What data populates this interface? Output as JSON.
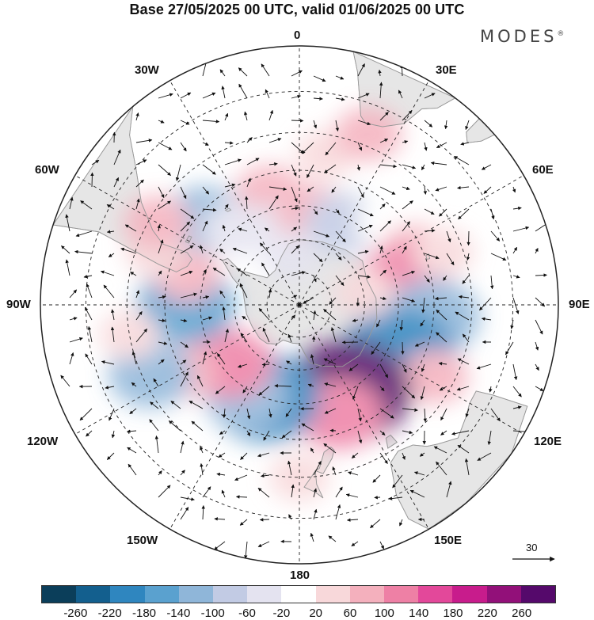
{
  "title": "Base 27/05/2025 00 UTC, valid 01/06/2025 00 UTC",
  "brand": "MODES",
  "brand_mark": "®",
  "longitude_labels": {
    "top": "0",
    "top_left": "30W",
    "top_right": "30E",
    "upper_left": "60W",
    "upper_right": "60E",
    "left": "90W",
    "right": "90E",
    "lower_left": "120W",
    "lower_right": "120E",
    "bottom_left": "150W",
    "bottom_right": "150E",
    "bottom": "180"
  },
  "reference_vector": {
    "value": "30"
  },
  "colorbar": {
    "colors": [
      "#0b3e5a",
      "#135f8e",
      "#2f86bf",
      "#5aa1cf",
      "#8fb6d9",
      "#c2cbe4",
      "#e4e3f0",
      "#ffffff",
      "#f8d8da",
      "#f4b0bd",
      "#ee80a5",
      "#e3489a",
      "#c81c8c",
      "#921079",
      "#55096b"
    ],
    "tick_labels": [
      "-260",
      "-220",
      "-180",
      "-140",
      "-100",
      "-60",
      "-20",
      "20",
      "60",
      "100",
      "140",
      "180",
      "220",
      "260"
    ]
  },
  "map": {
    "projection": "south-polar-stereographic",
    "land_color": "#e6e6e6",
    "coast_color": "#999999",
    "graticule": "dashed",
    "anomaly_cells": [
      {
        "lon": 10,
        "lat": -45,
        "v": 40
      },
      {
        "lon": 22,
        "lat": -37,
        "v": 60
      },
      {
        "lon": 28,
        "lat": -55,
        "v": -20
      },
      {
        "lon": -15,
        "lat": -55,
        "v": 60
      },
      {
        "lon": -25,
        "lat": -60,
        "v": 80
      },
      {
        "lon": -48,
        "lat": -52,
        "v": -110
      },
      {
        "lon": -40,
        "lat": -60,
        "v": -60
      },
      {
        "lon": -5,
        "lat": -65,
        "v": -60
      },
      {
        "lon": 8,
        "lat": -62,
        "v": 80
      },
      {
        "lon": 28,
        "lat": -62,
        "v": -90
      },
      {
        "lon": 45,
        "lat": -55,
        "v": -20
      },
      {
        "lon": 65,
        "lat": -52,
        "v": 60
      },
      {
        "lon": 75,
        "lat": -57,
        "v": 120
      },
      {
        "lon": 70,
        "lat": -45,
        "v": 40
      },
      {
        "lon": 95,
        "lat": -50,
        "v": -140
      },
      {
        "lon": 115,
        "lat": -57,
        "v": -200
      },
      {
        "lon": 118,
        "lat": -45,
        "v": 60
      },
      {
        "lon": 150,
        "lat": -60,
        "v": 270
      },
      {
        "lon": 160,
        "lat": -55,
        "v": 120
      },
      {
        "lon": -160,
        "lat": -60,
        "v": -190
      },
      {
        "lon": -150,
        "lat": -58,
        "v": -110
      },
      {
        "lon": -130,
        "lat": -62,
        "v": 120
      },
      {
        "lon": -120,
        "lat": -50,
        "v": 60
      },
      {
        "lon": -115,
        "lat": -42,
        "v": -110
      },
      {
        "lon": -90,
        "lat": -56,
        "v": -150
      },
      {
        "lon": -75,
        "lat": -55,
        "v": 60
      },
      {
        "lon": -70,
        "lat": -45,
        "v": 40
      },
      {
        "lon": -100,
        "lat": -40,
        "v": 40
      },
      {
        "lon": -60,
        "lat": -42,
        "v": 60
      },
      {
        "lon": 180,
        "lat": -40,
        "v": 40
      },
      {
        "lon": -10,
        "lat": -75,
        "v": -40
      },
      {
        "lon": 80,
        "lat": -70,
        "v": 40
      }
    ]
  }
}
